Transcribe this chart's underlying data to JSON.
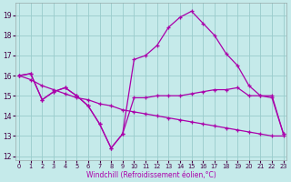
{
  "xlabel": "Windchill (Refroidissement éolien,°C)",
  "x_ticks": [
    0,
    1,
    2,
    3,
    4,
    5,
    6,
    7,
    8,
    9,
    10,
    11,
    12,
    13,
    14,
    15,
    16,
    17,
    18,
    19,
    20,
    21,
    22,
    23
  ],
  "ylim": [
    11.8,
    19.6
  ],
  "yticks": [
    12,
    13,
    14,
    15,
    16,
    17,
    18,
    19
  ],
  "xlim": [
    -0.3,
    23.3
  ],
  "bg_color": "#c5eaea",
  "line_color": "#aa00aa",
  "grid_color": "#99cccc",
  "line1_x": [
    0,
    1,
    2,
    3,
    4,
    5,
    6,
    7,
    8,
    9,
    10,
    11,
    12,
    13,
    14,
    15,
    16,
    17,
    18,
    19,
    20,
    21,
    22,
    23
  ],
  "line1_y": [
    16.0,
    16.1,
    14.8,
    15.2,
    15.4,
    15.0,
    14.5,
    13.6,
    12.4,
    13.1,
    16.8,
    17.0,
    17.5,
    18.4,
    18.9,
    19.2,
    18.6,
    18.0,
    17.1,
    16.5,
    15.5,
    15.0,
    15.0,
    13.1
  ],
  "line2_x": [
    0,
    1,
    2,
    3,
    4,
    5,
    6,
    7,
    8,
    9,
    10,
    11,
    12,
    13,
    14,
    15,
    16,
    17,
    18,
    19,
    20,
    21,
    22,
    23
  ],
  "line2_y": [
    16.0,
    16.1,
    14.8,
    15.2,
    15.4,
    15.0,
    14.5,
    13.6,
    12.4,
    13.1,
    14.9,
    14.9,
    15.0,
    15.0,
    15.0,
    15.1,
    15.2,
    15.3,
    15.3,
    15.4,
    15.0,
    15.0,
    14.9,
    13.1
  ],
  "line3_x": [
    0,
    1,
    2,
    3,
    4,
    5,
    6,
    7,
    8,
    9,
    10,
    11,
    12,
    13,
    14,
    15,
    16,
    17,
    18,
    19,
    20,
    21,
    22,
    23
  ],
  "line3_y": [
    16.0,
    15.8,
    15.5,
    15.3,
    15.1,
    14.9,
    14.8,
    14.6,
    14.5,
    14.3,
    14.2,
    14.1,
    14.0,
    13.9,
    13.8,
    13.7,
    13.6,
    13.5,
    13.4,
    13.3,
    13.2,
    13.1,
    13.0,
    13.0
  ]
}
